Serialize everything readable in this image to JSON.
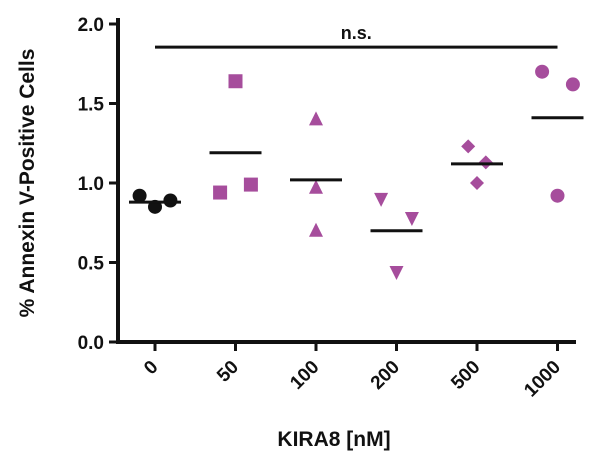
{
  "chart_data": {
    "type": "scatter",
    "xlabel": "KIRA8 [nM]",
    "ylabel": "% Annexin V-Positive Cells",
    "ylim": [
      0,
      2.0
    ],
    "yticks": [
      "0.0",
      "0.5",
      "1.0",
      "1.5",
      "2.0"
    ],
    "ytick_values": [
      0,
      0.5,
      1.0,
      1.5,
      2.0
    ],
    "categories": [
      "0",
      "50",
      "100",
      "200",
      "500",
      "1000"
    ],
    "series": [
      {
        "category": "0",
        "marker": "circle",
        "color": "#111111",
        "points": [
          [
            -0.35,
            0.92
          ],
          [
            0.0,
            0.85
          ],
          [
            0.35,
            0.89
          ]
        ],
        "mean": 0.88
      },
      {
        "category": "50",
        "marker": "square",
        "color": "#a64d9c",
        "points": [
          [
            -0.35,
            0.94
          ],
          [
            0.0,
            1.64
          ],
          [
            0.35,
            0.99
          ]
        ],
        "mean": 1.19
      },
      {
        "category": "100",
        "marker": "triangle-up",
        "color": "#a64d9c",
        "points": [
          [
            0.0,
            1.4
          ],
          [
            0.0,
            0.97
          ],
          [
            0.0,
            0.7
          ]
        ],
        "mean": 1.02
      },
      {
        "category": "200",
        "marker": "triangle-down",
        "color": "#a64d9c",
        "points": [
          [
            -0.35,
            0.9
          ],
          [
            0.35,
            0.78
          ],
          [
            0.0,
            0.44
          ]
        ],
        "mean": 0.7
      },
      {
        "category": "500",
        "marker": "diamond",
        "color": "#a64d9c",
        "points": [
          [
            -0.2,
            1.23
          ],
          [
            0.2,
            1.13
          ],
          [
            0.0,
            1.0
          ]
        ],
        "mean": 1.12
      },
      {
        "category": "1000",
        "marker": "circle",
        "color": "#a64d9c",
        "points": [
          [
            -0.35,
            1.7
          ],
          [
            0.35,
            1.62
          ],
          [
            0.0,
            0.92
          ]
        ],
        "mean": 1.41
      }
    ],
    "annotation": {
      "text": "n.s.",
      "y": 1.93
    },
    "grid": false,
    "legend": "none"
  }
}
